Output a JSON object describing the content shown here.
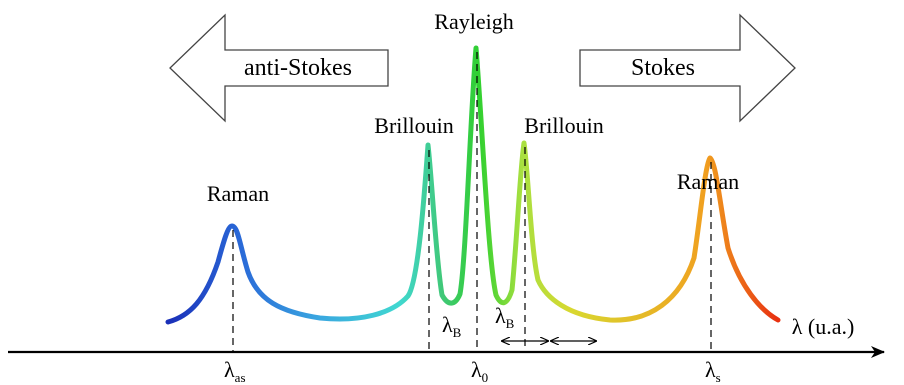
{
  "arrows": {
    "anti_stokes": {
      "label": "anti-Stokes",
      "color": "#2255cc"
    },
    "stokes": {
      "label": "Stokes",
      "color": "#e01010"
    }
  },
  "peaks": {
    "raman_left": "Raman",
    "brillouin_left": "Brillouin",
    "rayleigh": "Rayleigh",
    "brillouin_right": "Brillouin",
    "raman_right": "Raman"
  },
  "axis": {
    "label": "λ (u.a.)",
    "ticks": [
      {
        "sym": "λ",
        "sub": "as"
      },
      {
        "sym": "λ",
        "sub": "0"
      },
      {
        "sym": "λ",
        "sub": "s"
      }
    ]
  },
  "shift_labels": [
    {
      "sym": "λ",
      "sub": "B"
    },
    {
      "sym": "λ",
      "sub": "B"
    }
  ],
  "spectrum_gradient": [
    "#1a2fb8",
    "#3aa0e0",
    "#40d8d0",
    "#40c860",
    "#30d030",
    "#a8e040",
    "#d8d830",
    "#f0a020",
    "#e83010"
  ]
}
